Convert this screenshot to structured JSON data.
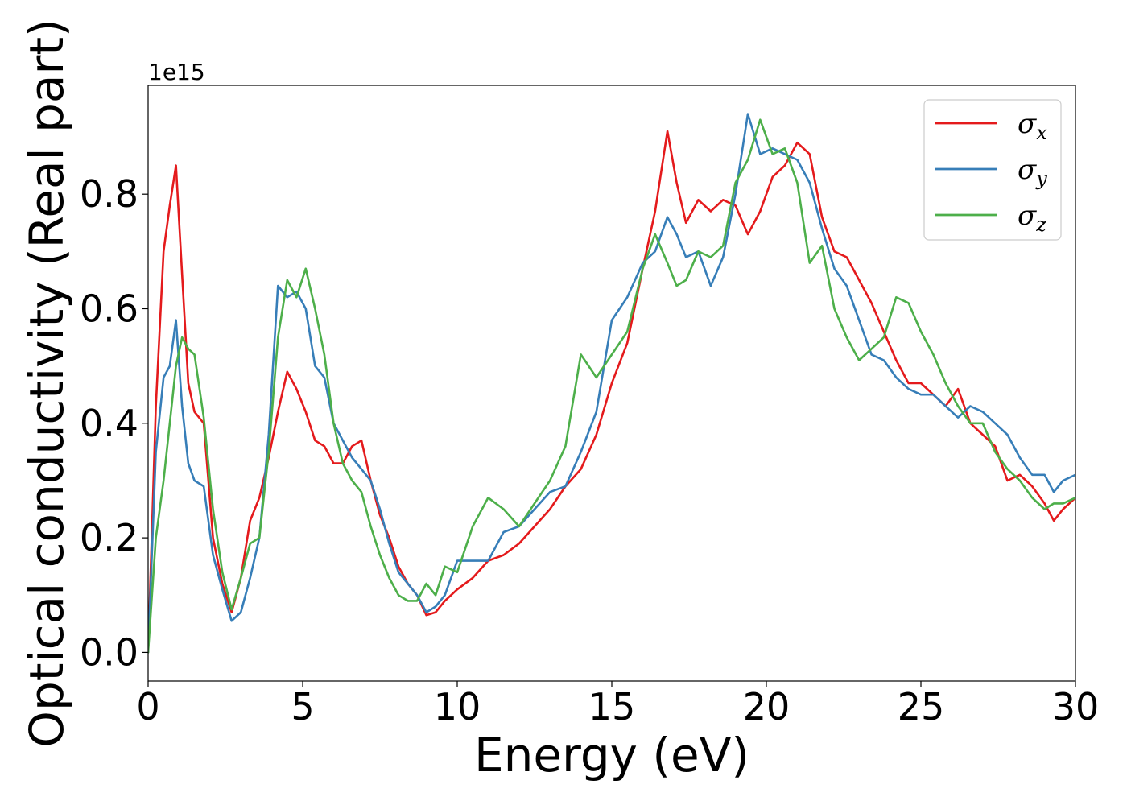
{
  "chart_data": {
    "type": "line",
    "title": "",
    "xlabel": "Energy (eV)",
    "ylabel": "Optical conductivity (Real part)",
    "y_offset_label": "1e15",
    "xlim": [
      0,
      30
    ],
    "ylim": [
      -0.05,
      0.99
    ],
    "x_ticks": [
      0,
      5,
      10,
      15,
      20,
      25,
      30
    ],
    "x_tick_labels": [
      "0",
      "5",
      "10",
      "15",
      "20",
      "25",
      "30"
    ],
    "y_ticks": [
      0.0,
      0.2,
      0.4,
      0.6,
      0.8
    ],
    "y_tick_labels": [
      "0.0",
      "0.2",
      "0.4",
      "0.6",
      "0.8"
    ],
    "grid": false,
    "legend_position": "top-right",
    "colors": {
      "sigma_x": "#e41a1c",
      "sigma_y": "#377eb8",
      "sigma_z": "#4daf4a"
    },
    "series": [
      {
        "name": "σx",
        "name_base": "σ",
        "name_sub": "x",
        "color": "#e41a1c",
        "x": [
          0,
          0.25,
          0.5,
          0.7,
          0.9,
          1.1,
          1.3,
          1.5,
          1.8,
          2.1,
          2.4,
          2.7,
          3.0,
          3.3,
          3.6,
          3.9,
          4.2,
          4.5,
          4.8,
          5.1,
          5.4,
          5.7,
          6.0,
          6.3,
          6.6,
          6.9,
          7.2,
          7.5,
          7.8,
          8.1,
          8.4,
          8.7,
          9.0,
          9.3,
          9.6,
          10.0,
          10.5,
          11.0,
          11.5,
          12.0,
          12.5,
          13.0,
          13.5,
          14.0,
          14.5,
          15.0,
          15.5,
          16.0,
          16.4,
          16.8,
          17.1,
          17.4,
          17.8,
          18.2,
          18.6,
          19.0,
          19.4,
          19.8,
          20.2,
          20.6,
          21.0,
          21.4,
          21.8,
          22.2,
          22.6,
          23.0,
          23.4,
          23.8,
          24.2,
          24.6,
          25.0,
          25.4,
          25.8,
          26.2,
          26.6,
          27.0,
          27.4,
          27.8,
          28.2,
          28.6,
          29.0,
          29.3,
          29.6,
          30.0
        ],
        "y": [
          0.0,
          0.43,
          0.7,
          0.78,
          0.85,
          0.66,
          0.47,
          0.42,
          0.4,
          0.2,
          0.12,
          0.07,
          0.13,
          0.23,
          0.27,
          0.34,
          0.42,
          0.49,
          0.46,
          0.42,
          0.37,
          0.36,
          0.33,
          0.33,
          0.36,
          0.37,
          0.3,
          0.24,
          0.2,
          0.15,
          0.12,
          0.1,
          0.065,
          0.07,
          0.09,
          0.11,
          0.13,
          0.16,
          0.17,
          0.19,
          0.22,
          0.25,
          0.29,
          0.32,
          0.38,
          0.47,
          0.54,
          0.67,
          0.77,
          0.91,
          0.82,
          0.75,
          0.79,
          0.77,
          0.79,
          0.78,
          0.73,
          0.77,
          0.83,
          0.85,
          0.89,
          0.87,
          0.76,
          0.7,
          0.69,
          0.65,
          0.61,
          0.56,
          0.51,
          0.47,
          0.47,
          0.45,
          0.43,
          0.46,
          0.4,
          0.38,
          0.36,
          0.3,
          0.31,
          0.29,
          0.26,
          0.23,
          0.25,
          0.27
        ]
      },
      {
        "name": "σy",
        "name_base": "σ",
        "name_sub": "y",
        "color": "#377eb8",
        "x": [
          0,
          0.25,
          0.5,
          0.7,
          0.9,
          1.1,
          1.3,
          1.5,
          1.8,
          2.1,
          2.4,
          2.7,
          3.0,
          3.3,
          3.6,
          3.9,
          4.2,
          4.5,
          4.8,
          5.1,
          5.4,
          5.7,
          6.0,
          6.3,
          6.6,
          6.9,
          7.2,
          7.5,
          7.8,
          8.1,
          8.4,
          8.7,
          9.0,
          9.3,
          9.6,
          10.0,
          10.5,
          11.0,
          11.5,
          12.0,
          12.5,
          13.0,
          13.5,
          14.0,
          14.5,
          15.0,
          15.5,
          16.0,
          16.4,
          16.8,
          17.1,
          17.4,
          17.8,
          18.2,
          18.6,
          19.0,
          19.4,
          19.8,
          20.2,
          20.6,
          21.0,
          21.4,
          21.8,
          22.2,
          22.6,
          23.0,
          23.4,
          23.8,
          24.2,
          24.6,
          25.0,
          25.4,
          25.8,
          26.2,
          26.6,
          27.0,
          27.4,
          27.8,
          28.2,
          28.6,
          29.0,
          29.3,
          29.6,
          30.0
        ],
        "y": [
          0.0,
          0.35,
          0.48,
          0.5,
          0.58,
          0.43,
          0.33,
          0.3,
          0.29,
          0.17,
          0.11,
          0.055,
          0.07,
          0.13,
          0.2,
          0.38,
          0.64,
          0.62,
          0.63,
          0.6,
          0.5,
          0.48,
          0.4,
          0.37,
          0.34,
          0.32,
          0.3,
          0.25,
          0.19,
          0.14,
          0.12,
          0.1,
          0.07,
          0.08,
          0.1,
          0.16,
          0.16,
          0.16,
          0.21,
          0.22,
          0.25,
          0.28,
          0.29,
          0.35,
          0.42,
          0.58,
          0.62,
          0.68,
          0.7,
          0.76,
          0.73,
          0.69,
          0.7,
          0.64,
          0.69,
          0.8,
          0.94,
          0.87,
          0.88,
          0.87,
          0.86,
          0.82,
          0.74,
          0.67,
          0.64,
          0.58,
          0.52,
          0.51,
          0.48,
          0.46,
          0.45,
          0.45,
          0.43,
          0.41,
          0.43,
          0.42,
          0.4,
          0.38,
          0.34,
          0.31,
          0.31,
          0.28,
          0.3,
          0.31
        ]
      },
      {
        "name": "σz",
        "name_base": "σ",
        "name_sub": "z",
        "color": "#4daf4a",
        "x": [
          0,
          0.25,
          0.5,
          0.7,
          0.9,
          1.1,
          1.3,
          1.5,
          1.8,
          2.1,
          2.4,
          2.7,
          3.0,
          3.3,
          3.6,
          3.9,
          4.2,
          4.5,
          4.8,
          5.1,
          5.4,
          5.7,
          6.0,
          6.3,
          6.6,
          6.9,
          7.2,
          7.5,
          7.8,
          8.1,
          8.4,
          8.7,
          9.0,
          9.3,
          9.6,
          10.0,
          10.5,
          11.0,
          11.5,
          12.0,
          12.5,
          13.0,
          13.5,
          14.0,
          14.5,
          15.0,
          15.5,
          16.0,
          16.4,
          16.8,
          17.1,
          17.4,
          17.8,
          18.2,
          18.6,
          19.0,
          19.4,
          19.8,
          20.2,
          20.6,
          21.0,
          21.4,
          21.8,
          22.2,
          22.6,
          23.0,
          23.4,
          23.8,
          24.2,
          24.6,
          25.0,
          25.4,
          25.8,
          26.2,
          26.6,
          27.0,
          27.4,
          27.8,
          28.2,
          28.6,
          29.0,
          29.3,
          29.6,
          30.0
        ],
        "y": [
          0.0,
          0.2,
          0.3,
          0.4,
          0.5,
          0.55,
          0.53,
          0.52,
          0.41,
          0.25,
          0.14,
          0.075,
          0.13,
          0.19,
          0.2,
          0.35,
          0.55,
          0.65,
          0.62,
          0.67,
          0.6,
          0.52,
          0.4,
          0.33,
          0.3,
          0.28,
          0.22,
          0.17,
          0.13,
          0.1,
          0.09,
          0.09,
          0.12,
          0.1,
          0.15,
          0.14,
          0.22,
          0.27,
          0.25,
          0.22,
          0.26,
          0.3,
          0.36,
          0.52,
          0.48,
          0.52,
          0.56,
          0.67,
          0.73,
          0.68,
          0.64,
          0.65,
          0.7,
          0.69,
          0.71,
          0.82,
          0.86,
          0.93,
          0.87,
          0.88,
          0.82,
          0.68,
          0.71,
          0.6,
          0.55,
          0.51,
          0.53,
          0.55,
          0.62,
          0.61,
          0.56,
          0.52,
          0.47,
          0.43,
          0.4,
          0.4,
          0.35,
          0.32,
          0.3,
          0.27,
          0.25,
          0.26,
          0.26,
          0.27
        ]
      }
    ]
  }
}
